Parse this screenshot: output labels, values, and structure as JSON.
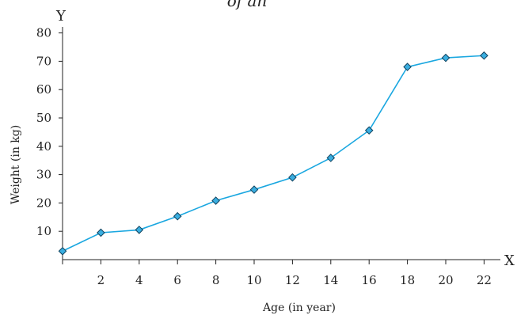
{
  "chart_data": {
    "type": "line",
    "title": "of an",
    "xlabel": "Age (in year)",
    "ylabel": "Weight (in kg)",
    "x_axis_letter": "X",
    "y_axis_letter": "Y",
    "xlim": [
      0,
      22.5
    ],
    "ylim": [
      0,
      80
    ],
    "x_ticks": [
      2,
      4,
      6,
      8,
      10,
      12,
      14,
      16,
      18,
      20,
      22
    ],
    "y_ticks": [
      10,
      20,
      30,
      40,
      50,
      60,
      70,
      80
    ],
    "grid": false,
    "line_color": "#1aa7e0",
    "marker_color": "#3aaee0",
    "marker": "diamond",
    "series": [
      {
        "x": [
          0,
          2,
          4,
          6,
          8,
          10,
          12,
          14,
          16,
          18,
          20,
          22
        ],
        "y": [
          3,
          9.5,
          10.5,
          15.3,
          20.8,
          24.7,
          29,
          35.9,
          45.6,
          68,
          71.2,
          72
        ]
      }
    ]
  }
}
